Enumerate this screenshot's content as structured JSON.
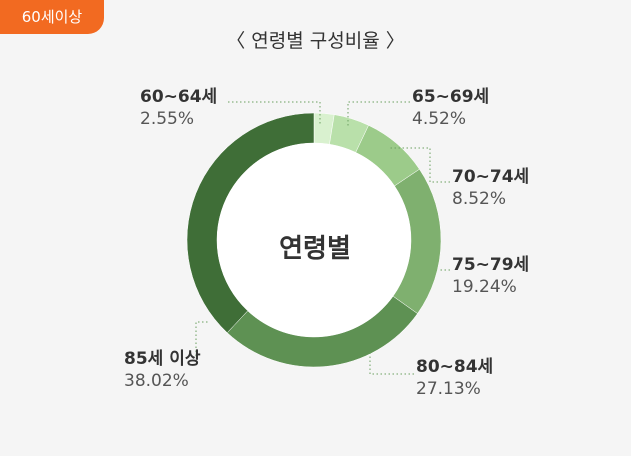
{
  "badge": "60세이상",
  "title": "〈 연령별 구성비율 〉",
  "colors": {
    "badge": "#f26a21",
    "segments": [
      "#d9f1cf",
      "#b9e0aa",
      "#9ccb8a",
      "#7fb06f",
      "#5e9153",
      "#3f6e37"
    ]
  },
  "chart_data": {
    "type": "pie",
    "donut": true,
    "title": "〈 연령별 구성비율 〉",
    "center_label": "연령별",
    "categories": [
      "60~64세",
      "65~69세",
      "70~74세",
      "75~79세",
      "80~84세",
      "85세 이상"
    ],
    "values": [
      2.55,
      4.52,
      8.52,
      19.24,
      27.13,
      38.02
    ],
    "value_labels": [
      "2.55%",
      "4.52%",
      "8.52%",
      "19.24%",
      "27.13%",
      "38.02%"
    ]
  }
}
